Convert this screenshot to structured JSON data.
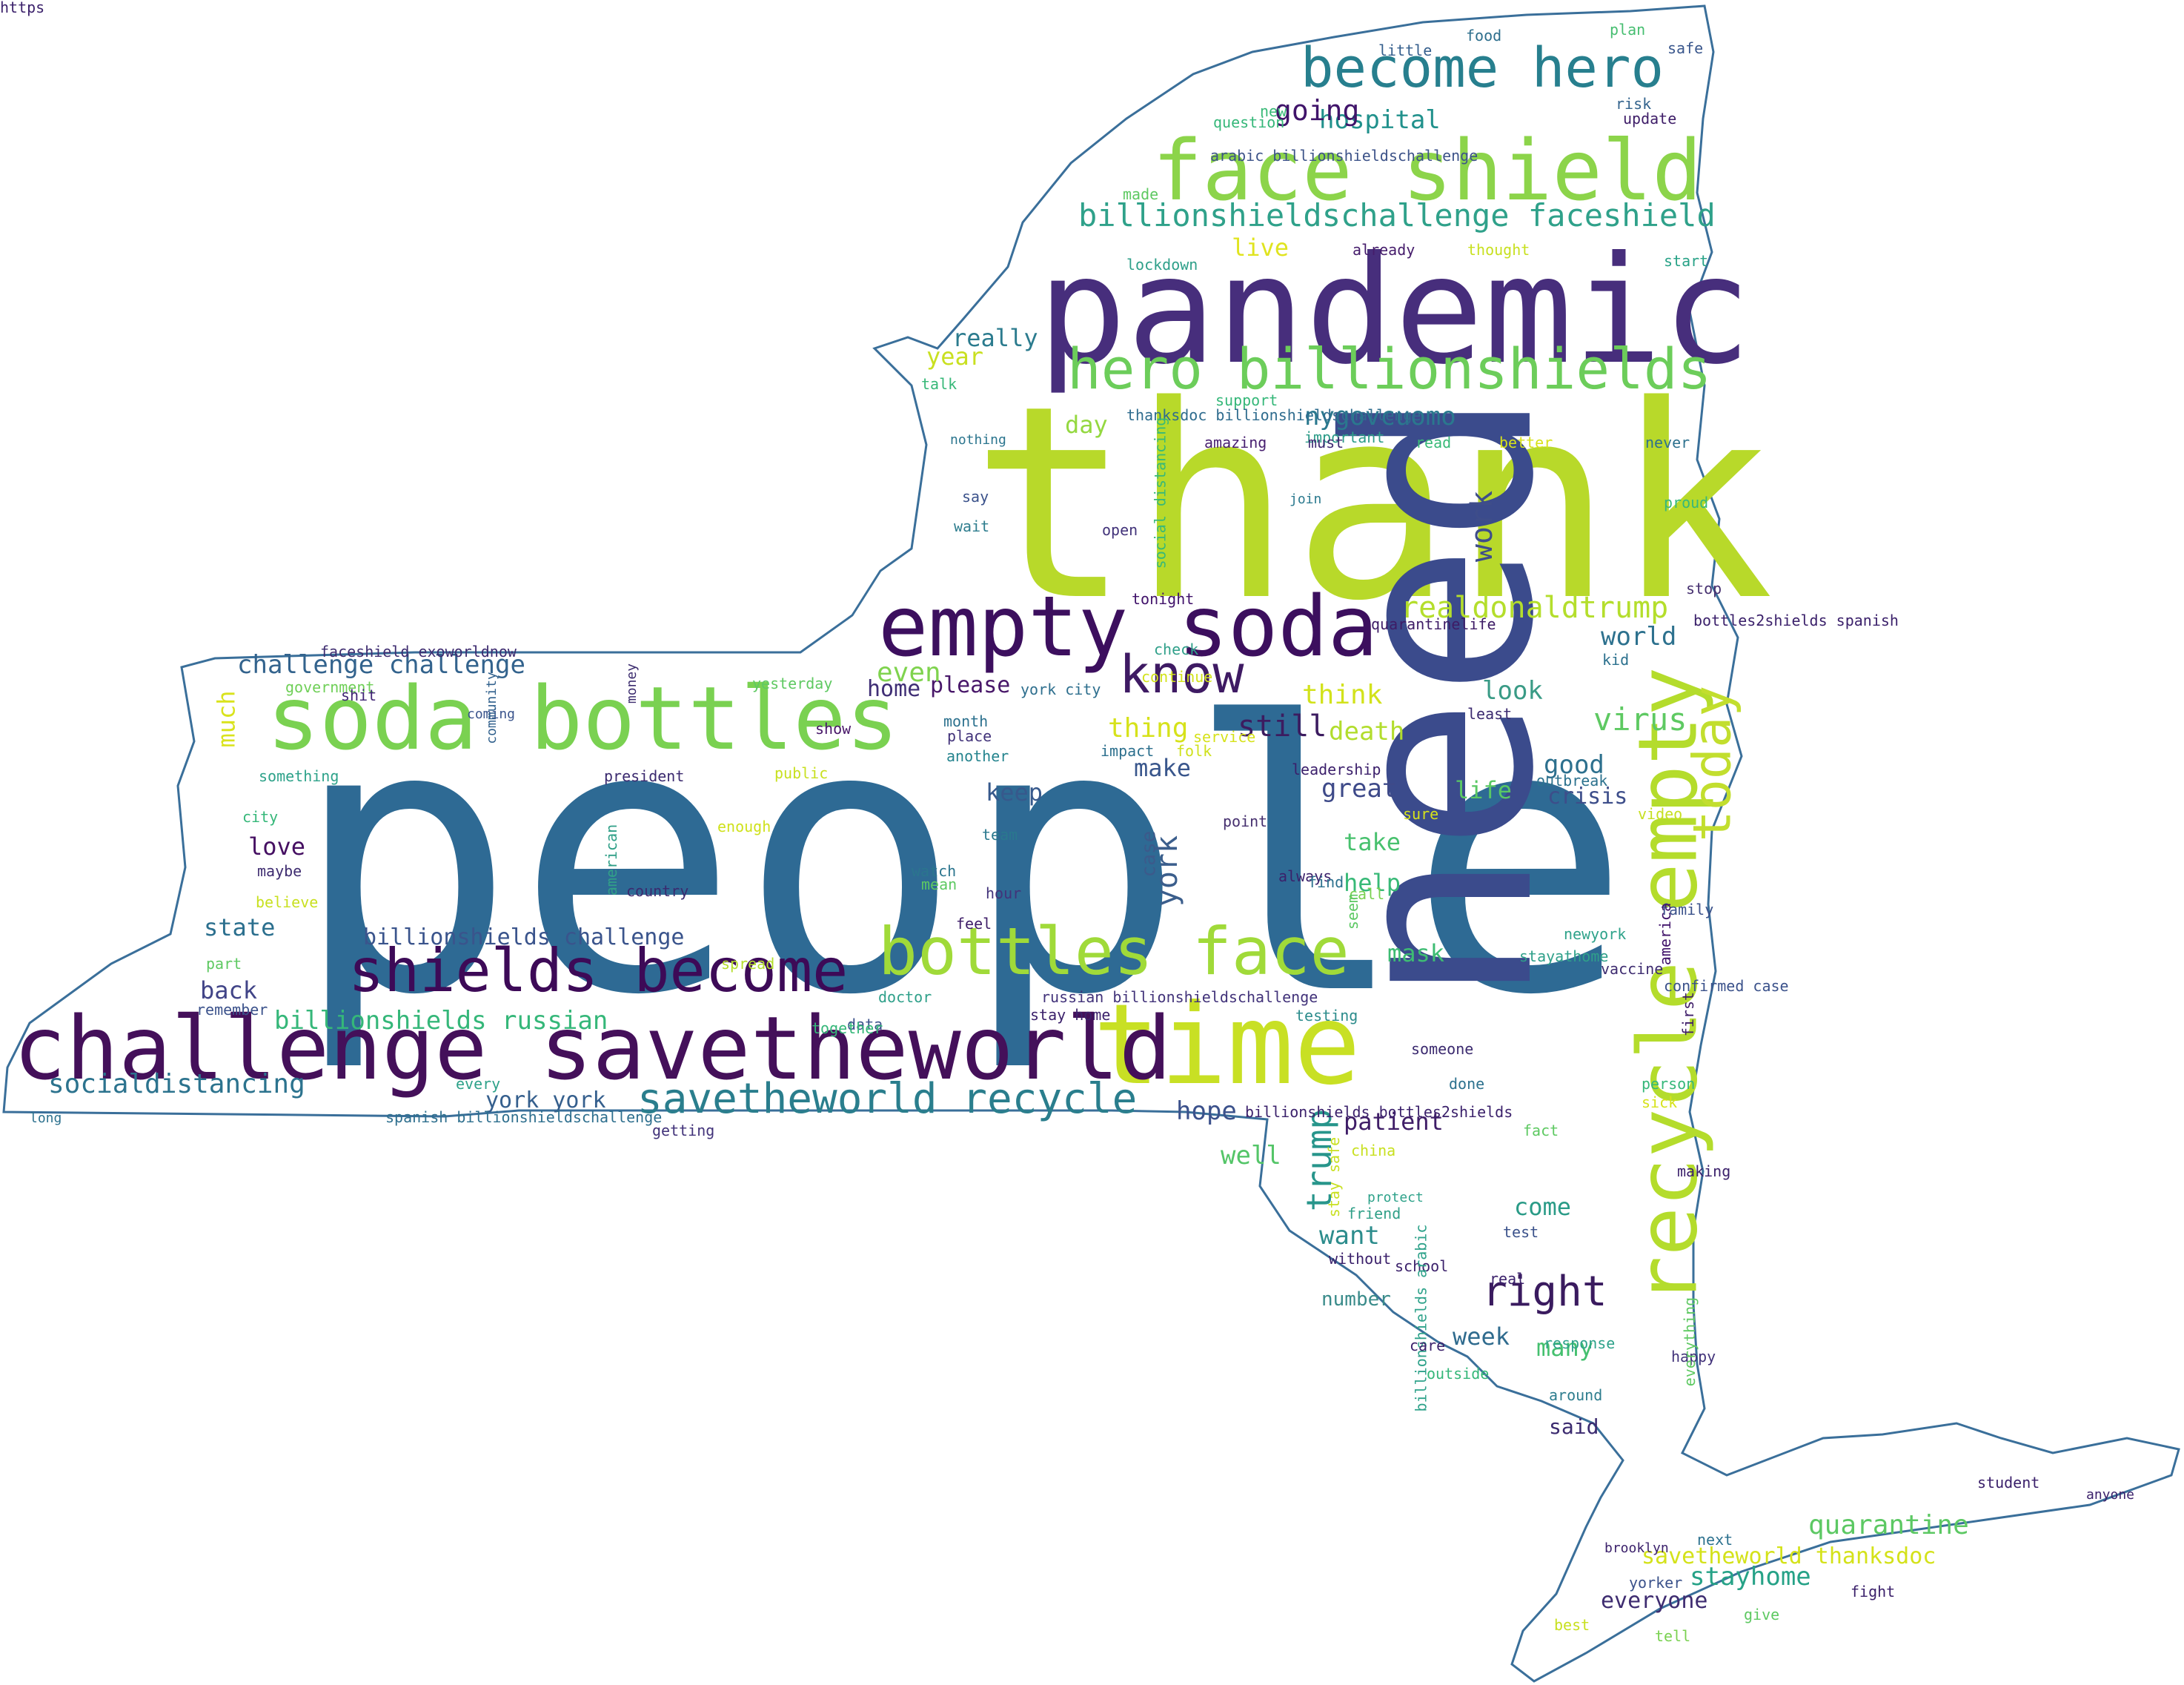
{
  "words": [
    {
      "text": "people",
      "color": "#2e6a94",
      "rot": 0
    },
    {
      "text": "thank",
      "color": "#b8d92a",
      "rot": 0
    },
    {
      "text": "need",
      "color": "#3b4b8c",
      "rot": -90
    },
    {
      "text": "pandemic",
      "color": "#472e7c",
      "rot": 0
    },
    {
      "text": "time",
      "color": "#c8e024",
      "rot": 0
    },
    {
      "text": "challenge savetheworld",
      "color": "#44105a",
      "rot": 0
    },
    {
      "text": "soda bottles",
      "color": "#7ad151",
      "rot": 0
    },
    {
      "text": "empty soda",
      "color": "#3c0f5e",
      "rot": 0
    },
    {
      "text": "face shield",
      "color": "#8cd44a",
      "rot": 0
    },
    {
      "text": "recycle empty",
      "color": "#b4dc2c",
      "rot": -90
    },
    {
      "text": "shields become",
      "color": "#3d0a57",
      "rot": 0
    },
    {
      "text": "bottles face",
      "color": "#a0da39",
      "rot": 0
    },
    {
      "text": "hero billionshields",
      "color": "#6ccd5a",
      "rot": 0
    },
    {
      "text": "become hero",
      "color": "#277f8e",
      "rot": 0
    },
    {
      "text": "know",
      "color": "#3e1a63",
      "rot": 0
    },
    {
      "text": "today",
      "color": "#c2de2e",
      "rot": -90
    },
    {
      "text": "right",
      "color": "#3a1b5f",
      "rot": 0
    },
    {
      "text": "savetheworld recycle",
      "color": "#2a7e8d",
      "rot": 0
    },
    {
      "text": "billionshieldschallenge faceshield",
      "color": "#2fa18a",
      "rot": 0
    },
    {
      "text": "trump",
      "color": "#27958b",
      "rot": -90
    },
    {
      "text": "realdonaldtrump",
      "color": "#b4de2c",
      "rot": 0
    },
    {
      "text": "york",
      "color": "#3b5e8c",
      "rot": -90
    },
    {
      "text": "work",
      "color": "#3e4d8a",
      "rot": -90
    },
    {
      "text": "virus",
      "color": "#5ec962",
      "rot": 0
    },
    {
      "text": "quarantine",
      "color": "#5cc863",
      "rot": 0
    },
    {
      "text": "stayhome",
      "color": "#26a287",
      "rot": 0
    },
    {
      "text": "savetheworld thanksdoc",
      "color": "#d4e21a",
      "rot": 0
    },
    {
      "text": "everyone",
      "color": "#3e2c70",
      "rot": 0
    },
    {
      "text": "socialdistancing",
      "color": "#2c738e",
      "rot": 0
    },
    {
      "text": "billionshields russian",
      "color": "#35b779",
      "rot": 0
    },
    {
      "text": "billionshields challenge",
      "color": "#3a548c",
      "rot": 0
    },
    {
      "text": "challenge challenge",
      "color": "#33638d",
      "rot": 0
    },
    {
      "text": "nygovcuomo",
      "color": "#2a788e",
      "rot": 0
    },
    {
      "text": "hospital",
      "color": "#21918c",
      "rot": 0
    },
    {
      "text": "going",
      "color": "#40146a",
      "rot": 0
    },
    {
      "text": "really",
      "color": "#2b7b8e",
      "rot": 0
    },
    {
      "text": "year",
      "color": "#c9e020",
      "rot": 0
    },
    {
      "text": "day",
      "color": "#94d840",
      "rot": 0
    },
    {
      "text": "live",
      "color": "#e0e41f",
      "rot": 0
    },
    {
      "text": "world",
      "color": "#2d718e",
      "rot": 0
    },
    {
      "text": "look",
      "color": "#3a9b86",
      "rot": 0
    },
    {
      "text": "think",
      "color": "#d2e21b",
      "rot": 0
    },
    {
      "text": "death",
      "color": "#b2dd2d",
      "rot": 0
    },
    {
      "text": "still",
      "color": "#3c1c60",
      "rot": 0
    },
    {
      "text": "thing",
      "color": "#d6e21a",
      "rot": 0
    },
    {
      "text": "please",
      "color": "#481769",
      "rot": 0
    },
    {
      "text": "home",
      "color": "#3f2e75",
      "rot": 0
    },
    {
      "text": "even",
      "color": "#7fd34e",
      "rot": 0
    },
    {
      "text": "make",
      "color": "#39568c",
      "rot": 0
    },
    {
      "text": "keep",
      "color": "#37598c",
      "rot": 0
    },
    {
      "text": "great",
      "color": "#3e4a89",
      "rot": 0
    },
    {
      "text": "good",
      "color": "#2d708e",
      "rot": 0
    },
    {
      "text": "crisis",
      "color": "#3d4e8a",
      "rot": 0
    },
    {
      "text": "life",
      "color": "#5ac864",
      "rot": 0
    },
    {
      "text": "take",
      "color": "#48c16e",
      "rot": 0
    },
    {
      "text": "help",
      "color": "#38b977",
      "rot": 0
    },
    {
      "text": "mask",
      "color": "#3ebc73",
      "rot": 0
    },
    {
      "text": "love",
      "color": "#450f62",
      "rot": 0
    },
    {
      "text": "state",
      "color": "#2b6f8e",
      "rot": 0
    },
    {
      "text": "back",
      "color": "#414487",
      "rot": 0
    },
    {
      "text": "much",
      "color": "#d9e31c",
      "rot": -90
    },
    {
      "text": "york york",
      "color": "#355f8d",
      "rot": 0
    },
    {
      "text": "hope",
      "color": "#3b518b",
      "rot": 0
    },
    {
      "text": "well",
      "color": "#54c568",
      "rot": 0
    },
    {
      "text": "want",
      "color": "#2c8c8c",
      "rot": 0
    },
    {
      "text": "come",
      "color": "#2a9b87",
      "rot": 0
    },
    {
      "text": "patient",
      "color": "#3f1d67",
      "rot": 0
    },
    {
      "text": "week",
      "color": "#2f6b8e",
      "rot": 0
    },
    {
      "text": "many",
      "color": "#45c06f",
      "rot": 0
    },
    {
      "text": "said",
      "color": "#3b2a6f",
      "rot": 0
    },
    {
      "text": "number",
      "color": "#3a8b8a",
      "rot": 0
    },
    {
      "text": "case",
      "color": "#3c5a8b",
      "rot": -90
    },
    {
      "text": "food",
      "color": "#2e6f8d",
      "rot": 0
    },
    {
      "text": "plan",
      "color": "#47be71",
      "rot": 0
    },
    {
      "text": "safe",
      "color": "#39568c",
      "rot": 0
    },
    {
      "text": "little",
      "color": "#355f8d",
      "rot": 0
    },
    {
      "text": "new",
      "color": "#38b977",
      "rot": 0
    },
    {
      "text": "risk",
      "color": "#33638d",
      "rot": 0
    },
    {
      "text": "update",
      "color": "#3e1d68",
      "rot": 0
    },
    {
      "text": "question",
      "color": "#35b779",
      "rot": 0
    },
    {
      "text": "arabic billionshieldschallenge",
      "color": "#3d5389",
      "rot": 0
    },
    {
      "text": "made",
      "color": "#5ec962",
      "rot": 0
    },
    {
      "text": "already",
      "color": "#451c6b",
      "rot": 0
    },
    {
      "text": "thought",
      "color": "#c8e020",
      "rot": 0
    },
    {
      "text": "start",
      "color": "#28a287",
      "rot": 0
    },
    {
      "text": "lockdown",
      "color": "#2fa08a",
      "rot": 0
    },
    {
      "text": "talk",
      "color": "#37b878",
      "rot": 0
    },
    {
      "text": "support",
      "color": "#35b779",
      "rot": 0
    },
    {
      "text": "thanksdoc billionshieldschallenge",
      "color": "#2f6c8e",
      "rot": 0
    },
    {
      "text": "important",
      "color": "#2c9c88",
      "rot": 0
    },
    {
      "text": "nothing",
      "color": "#2b758e",
      "rot": 0
    },
    {
      "text": "amazing",
      "color": "#481f70",
      "rot": 0
    },
    {
      "text": "must",
      "color": "#3f2a72",
      "rot": 0
    },
    {
      "text": "read",
      "color": "#38b977",
      "rot": 0
    },
    {
      "text": "better",
      "color": "#d8e219",
      "rot": 0
    },
    {
      "text": "never",
      "color": "#2d718e",
      "rot": 0
    },
    {
      "text": "say",
      "color": "#3b528b",
      "rot": 0
    },
    {
      "text": "open",
      "color": "#42337a",
      "rot": 0
    },
    {
      "text": "social distancing",
      "color": "#37b978",
      "rot": -90
    },
    {
      "text": "join",
      "color": "#2a798e",
      "rot": 0
    },
    {
      "text": "proud",
      "color": "#36b87a",
      "rot": 0
    },
    {
      "text": "wait",
      "color": "#2e7d8e",
      "rot": 0
    },
    {
      "text": "stop",
      "color": "#46306f",
      "rot": 0
    },
    {
      "text": "tonight",
      "color": "#40126a",
      "rot": 0
    },
    {
      "text": "quarantinelife",
      "color": "#3e1c66",
      "rot": 0
    },
    {
      "text": "bottles2shields spanish",
      "color": "#3b216b",
      "rot": 0
    },
    {
      "text": "check",
      "color": "#30a08a",
      "rot": 0
    },
    {
      "text": "kid",
      "color": "#2c718e",
      "rot": 0
    },
    {
      "text": "continue",
      "color": "#d2e21b",
      "rot": 0
    },
    {
      "text": "faceshield exoworldnow",
      "color": "#3e2c70",
      "rot": 0
    },
    {
      "text": "government",
      "color": "#6fcf57",
      "rot": 0
    },
    {
      "text": "shit",
      "color": "#3f2474",
      "rot": 0
    },
    {
      "text": "coming",
      "color": "#3a548c",
      "rot": 0
    },
    {
      "text": "community",
      "color": "#31618d",
      "rot": -90
    },
    {
      "text": "money",
      "color": "#3b2b6e",
      "rot": -90
    },
    {
      "text": "yesterday",
      "color": "#5fc962",
      "rot": 0
    },
    {
      "text": "york city",
      "color": "#2e6f8e",
      "rot": 0
    },
    {
      "text": "least",
      "color": "#3b2a6f",
      "rot": 0
    },
    {
      "text": "show",
      "color": "#481769",
      "rot": 0
    },
    {
      "text": "month",
      "color": "#2c718e",
      "rot": 0
    },
    {
      "text": "place",
      "color": "#42337a",
      "rot": 0
    },
    {
      "text": "service",
      "color": "#d6e21a",
      "rot": 0
    },
    {
      "text": "impact",
      "color": "#2d708e",
      "rot": 0
    },
    {
      "text": "folk",
      "color": "#cfe11c",
      "rot": 0
    },
    {
      "text": "another",
      "color": "#25848e",
      "rot": 0
    },
    {
      "text": "leadership",
      "color": "#3b1f6b",
      "rot": 0
    },
    {
      "text": "something",
      "color": "#2ea28a",
      "rot": 0
    },
    {
      "text": "president",
      "color": "#3b2a6f",
      "rot": 0
    },
    {
      "text": "public",
      "color": "#c8e020",
      "rot": 0
    },
    {
      "text": "outbreak",
      "color": "#2c728e",
      "rot": 0
    },
    {
      "text": "video",
      "color": "#c6e021",
      "rot": 0
    },
    {
      "text": "sure",
      "color": "#d6e21a",
      "rot": 0
    },
    {
      "text": "city",
      "color": "#35b779",
      "rot": 0
    },
    {
      "text": "enough",
      "color": "#cfe11c",
      "rot": 0
    },
    {
      "text": "team",
      "color": "#2a788e",
      "rot": 0
    },
    {
      "text": "point",
      "color": "#46306f",
      "rot": 0
    },
    {
      "text": "maybe",
      "color": "#3e2c70",
      "rot": 0
    },
    {
      "text": "watch",
      "color": "#2b758e",
      "rot": 0
    },
    {
      "text": "always",
      "color": "#3b216b",
      "rot": 0
    },
    {
      "text": "american",
      "color": "#31a088",
      "rot": -90
    },
    {
      "text": "mean",
      "color": "#5ec962",
      "rot": 0
    },
    {
      "text": "hour",
      "color": "#42337a",
      "rot": 0
    },
    {
      "text": "find",
      "color": "#2c718e",
      "rot": 0
    },
    {
      "text": "call",
      "color": "#7ad151",
      "rot": 0
    },
    {
      "text": "believe",
      "color": "#c8e020",
      "rot": 0
    },
    {
      "text": "country",
      "color": "#3b2a6f",
      "rot": 0
    },
    {
      "text": "seem",
      "color": "#5cc863",
      "rot": -90
    },
    {
      "text": "feel",
      "color": "#3e1d68",
      "rot": 0
    },
    {
      "text": "family",
      "color": "#3b528b",
      "rot": 0
    },
    {
      "text": "newyork",
      "color": "#2ea28a",
      "rot": 0
    },
    {
      "text": "part",
      "color": "#5ec962",
      "rot": 0
    },
    {
      "text": "spread",
      "color": "#b4de2c",
      "rot": 0
    },
    {
      "text": "stayathome",
      "color": "#2fa08a",
      "rot": 0
    },
    {
      "text": "vaccine",
      "color": "#3e2c70",
      "rot": 0
    },
    {
      "text": "america",
      "color": "#40126a",
      "rot": -90
    },
    {
      "text": "remember",
      "color": "#3b528b",
      "rot": 0
    },
    {
      "text": "doctor",
      "color": "#2fa08a",
      "rot": 0
    },
    {
      "text": "russian billionshieldschallenge",
      "color": "#42337a",
      "rot": 0
    },
    {
      "text": "stay home",
      "color": "#3b216b",
      "rot": 0
    },
    {
      "text": "testing",
      "color": "#2c8c8c",
      "rot": 0
    },
    {
      "text": "confirmed case",
      "color": "#3b528b",
      "rot": 0
    },
    {
      "text": "data",
      "color": "#3b528b",
      "rot": 0
    },
    {
      "text": "together",
      "color": "#35b779",
      "rot": 0
    },
    {
      "text": "someone",
      "color": "#3b2a6f",
      "rot": 0
    },
    {
      "text": "first",
      "color": "#3e1d68",
      "rot": -90
    },
    {
      "text": "every",
      "color": "#2ea28a",
      "rot": 0
    },
    {
      "text": "done",
      "color": "#2c718e",
      "rot": 0
    },
    {
      "text": "person",
      "color": "#35b779",
      "rot": 0
    },
    {
      "text": "sick",
      "color": "#d6e21a",
      "rot": 0
    },
    {
      "text": "long",
      "color": "#2c718e",
      "rot": 0
    },
    {
      "text": "spanish billionshieldschallenge",
      "color": "#2e6f8e",
      "rot": 0
    },
    {
      "text": "getting",
      "color": "#42337a",
      "rot": 0
    },
    {
      "text": "billionshields bottles2shields",
      "color": "#3b216b",
      "rot": 0
    },
    {
      "text": "fact",
      "color": "#5ec962",
      "rot": 0
    },
    {
      "text": "china",
      "color": "#c8e020",
      "rot": 0
    },
    {
      "text": "making",
      "color": "#3b216b",
      "rot": 0
    },
    {
      "text": "stay safe",
      "color": "#c8e020",
      "rot": -90
    },
    {
      "text": "protect",
      "color": "#2ea28a",
      "rot": 0
    },
    {
      "text": "friend",
      "color": "#31a088",
      "rot": 0
    },
    {
      "text": "test",
      "color": "#3b528b",
      "rot": 0
    },
    {
      "text": "without",
      "color": "#3b216b",
      "rot": 0
    },
    {
      "text": "school",
      "color": "#3b216b",
      "rot": 0
    },
    {
      "text": "real",
      "color": "#3b216b",
      "rot": 0
    },
    {
      "text": "happy",
      "color": "#42337a",
      "rot": 0
    },
    {
      "text": "everything",
      "color": "#5ec962",
      "rot": -90
    },
    {
      "text": "billionshields arabic",
      "color": "#2ea28a",
      "rot": -90
    },
    {
      "text": "care",
      "color": "#3b216b",
      "rot": 0
    },
    {
      "text": "response",
      "color": "#2ea28a",
      "rot": 0
    },
    {
      "text": "outside",
      "color": "#35b779",
      "rot": 0
    },
    {
      "text": "around",
      "color": "#2e7d8e",
      "rot": 0
    },
    {
      "text": "student",
      "color": "#3b216b",
      "rot": 0
    },
    {
      "text": "anyone",
      "color": "#3b216b",
      "rot": 0
    },
    {
      "text": "next",
      "color": "#2c718e",
      "rot": 0
    },
    {
      "text": "brooklyn",
      "color": "#3b216b",
      "rot": 0
    },
    {
      "text": "yorker",
      "color": "#3b528b",
      "rot": 0
    },
    {
      "text": "fight",
      "color": "#3b216b",
      "rot": 0
    },
    {
      "text": "best",
      "color": "#c8e020",
      "rot": 0
    },
    {
      "text": "give",
      "color": "#5ec962",
      "rot": 0
    },
    {
      "text": "tell",
      "color": "#7ad151",
      "rot": 0
    },
    {
      "text": "https",
      "color": "#3b216b",
      "rot": 0
    }
  ]
}
